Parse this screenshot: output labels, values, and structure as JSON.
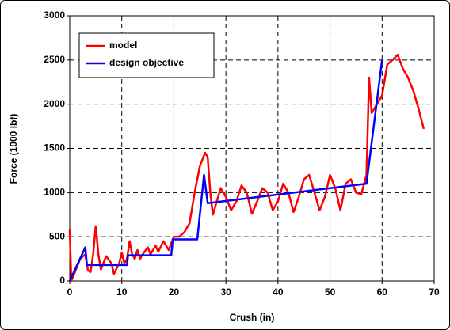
{
  "chart_data": {
    "type": "line",
    "x_label": "Crush (in)",
    "y_label": "Force (1000 lbf)",
    "xlim": [
      0,
      70
    ],
    "xticks": [
      0,
      10,
      20,
      30,
      40,
      50,
      60,
      70
    ],
    "ylim": [
      0,
      3000
    ],
    "yticks": [
      0,
      500,
      1000,
      1500,
      2000,
      2500,
      3000
    ],
    "grid": true,
    "legend": "upper left",
    "series": [
      {
        "name": "model",
        "color": "#ff0000",
        "x": [
          0,
          0.3,
          1,
          2,
          3,
          3.5,
          4,
          4.5,
          5,
          5.5,
          6,
          7,
          8,
          8.5,
          9.5,
          10,
          10.5,
          11,
          11.5,
          12,
          12.5,
          13,
          13.5,
          14,
          15,
          15.5,
          16.5,
          17,
          18,
          19,
          20,
          21,
          22,
          23,
          24,
          25,
          26,
          26.5,
          27,
          27.5,
          28,
          29,
          30,
          31,
          32,
          33,
          34,
          35,
          36,
          37,
          38,
          39,
          40,
          41,
          42,
          43,
          44,
          45,
          46,
          47,
          48,
          49,
          50,
          51,
          52,
          53,
          54,
          55,
          56,
          57,
          57.5,
          58,
          58.5,
          59,
          60,
          61,
          62,
          63,
          64,
          65,
          66,
          67,
          68
        ],
        "values": [
          580,
          0,
          100,
          250,
          300,
          120,
          100,
          300,
          620,
          300,
          130,
          280,
          200,
          80,
          200,
          320,
          200,
          250,
          450,
          300,
          250,
          350,
          250,
          300,
          380,
          300,
          400,
          330,
          450,
          350,
          500,
          500,
          550,
          650,
          1000,
          1300,
          1450,
          1400,
          1000,
          750,
          850,
          1050,
          950,
          800,
          900,
          1080,
          1000,
          760,
          900,
          1050,
          1000,
          800,
          900,
          1100,
          1000,
          780,
          950,
          1150,
          1200,
          1000,
          800,
          950,
          1200,
          1050,
          800,
          1100,
          1150,
          1000,
          980,
          1200,
          2300,
          1900,
          1950,
          2000,
          2100,
          2450,
          2500,
          2560,
          2400,
          2300,
          2150,
          1950,
          1720
        ]
      },
      {
        "name": "design objective",
        "color": "#0000ff",
        "x": [
          0,
          3,
          3.3,
          11,
          11.2,
          19.5,
          19.8,
          24.5,
          25.8,
          26.5,
          57,
          60
        ],
        "values": [
          0,
          380,
          180,
          180,
          290,
          290,
          470,
          470,
          1200,
          880,
          1100,
          2500
        ]
      }
    ]
  }
}
